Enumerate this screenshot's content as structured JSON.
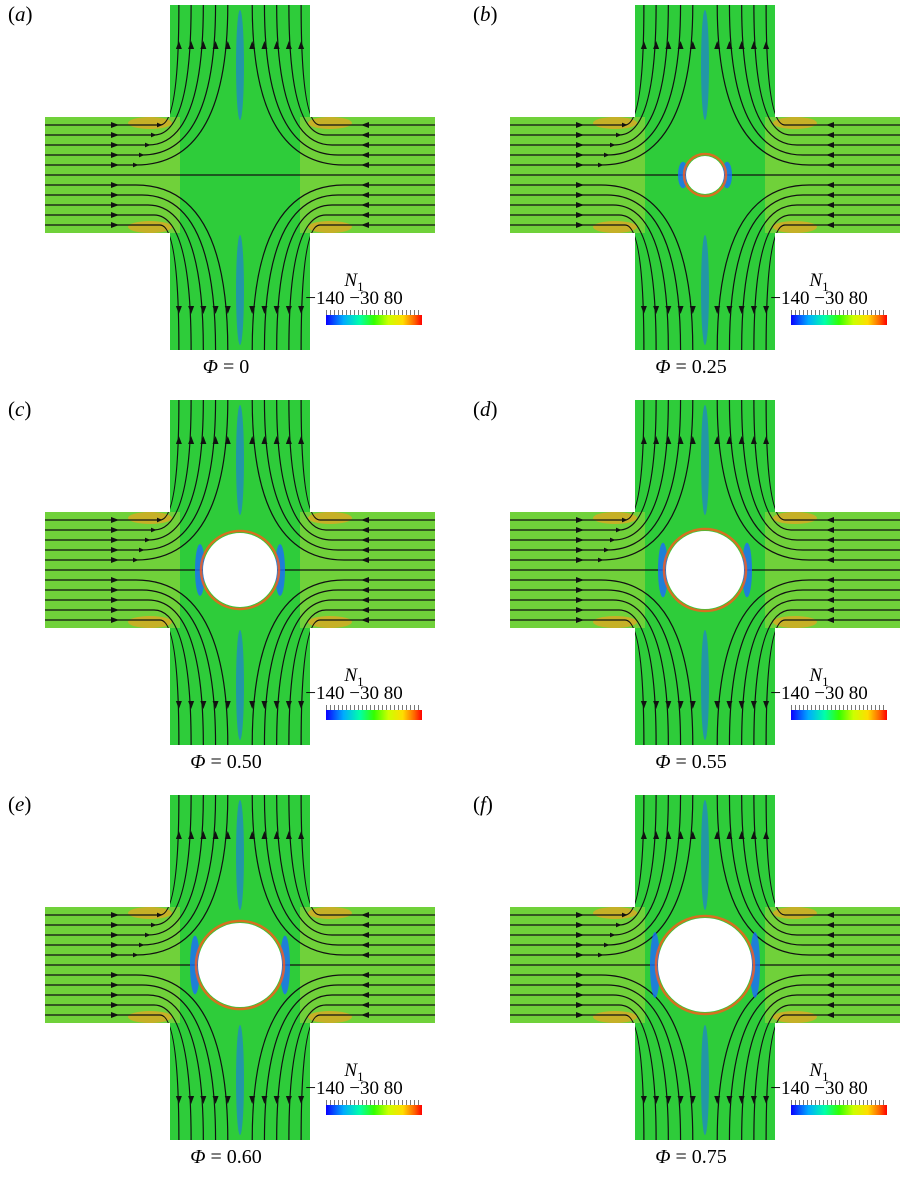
{
  "panels": [
    {
      "label": "(a)",
      "letter": "a",
      "phi": "0",
      "radius": 0
    },
    {
      "label": "(b)",
      "letter": "b",
      "phi": "0.25",
      "radius": 19
    },
    {
      "label": "(c)",
      "letter": "c",
      "phi": "0.50",
      "radius": 37
    },
    {
      "label": "(d)",
      "letter": "d",
      "phi": "0.55",
      "radius": 39
    },
    {
      "label": "(e)",
      "letter": "e",
      "phi": "0.60",
      "radius": 42
    },
    {
      "label": "(f)",
      "letter": "f",
      "phi": "0.75",
      "radius": 47
    }
  ],
  "colorbar": {
    "title": "N",
    "title_sub": "1",
    "tick_labels": "−140 −30  80",
    "min": -140,
    "mid": -30,
    "max": 80
  },
  "phi_symbol": "Φ",
  "colors": {
    "field": "#2ecc3a",
    "stream": "#111111",
    "high": "#ff9a1a",
    "low": "#1a6bff"
  }
}
